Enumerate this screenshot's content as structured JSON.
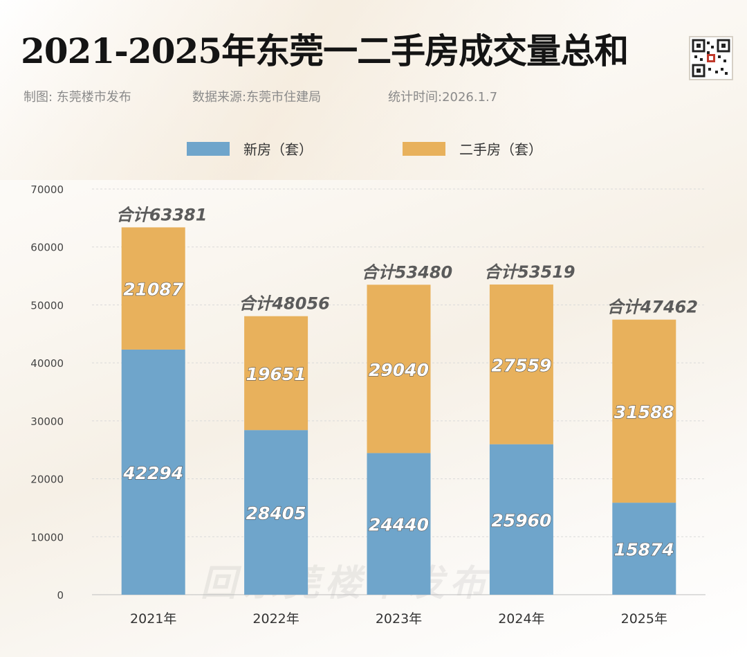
{
  "header": {
    "title": "2021-2025年东莞一二手房成交量总和",
    "credit": "制图: 东莞楼市发布",
    "source": "数据来源:东莞市住建局",
    "stat_time": "统计时间:2026.1.7"
  },
  "watermark": "回东莞楼市发布",
  "colors": {
    "new": "#6fa5cb",
    "second": "#e8b15c",
    "grid": "#d9d9d9"
  },
  "chart_data": {
    "type": "bar",
    "stacked": true,
    "title": "2021-2025年东莞一二手房成交量总和",
    "categories": [
      "2021年",
      "2022年",
      "2023年",
      "2024年",
      "2025年"
    ],
    "series": [
      {
        "name": "新房（套）",
        "values": [
          42294,
          28405,
          24440,
          25960,
          15874
        ]
      },
      {
        "name": "二手房（套）",
        "values": [
          21087,
          19651,
          29040,
          27559,
          31588
        ]
      }
    ],
    "totals": [
      63381,
      48056,
      53480,
      53519,
      47462
    ],
    "total_label_prefix": "合计",
    "ylim": [
      0,
      70000
    ],
    "yticks": [
      0,
      10000,
      20000,
      30000,
      40000,
      50000,
      60000,
      70000
    ],
    "grid": true,
    "legend_position": "top-center"
  }
}
